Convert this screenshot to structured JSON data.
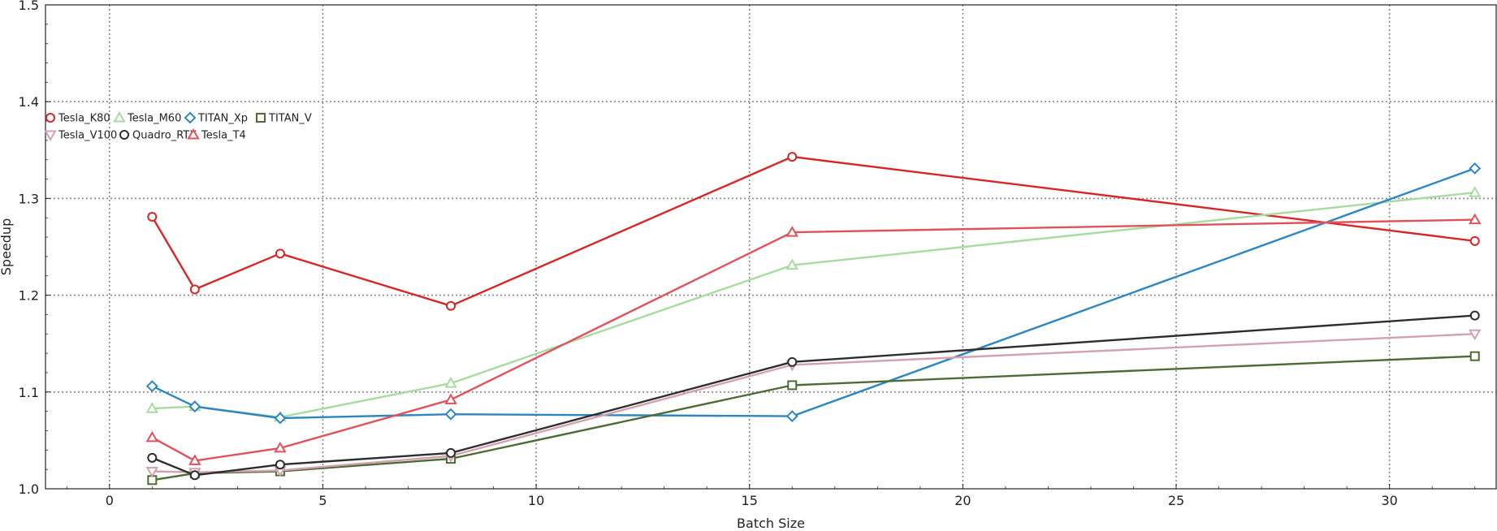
{
  "chart_data": {
    "type": "line",
    "title": "",
    "xlabel": "Batch Size",
    "ylabel": "Speedup",
    "xlim": [
      -1.5,
      32.5
    ],
    "ylim": [
      1.0,
      1.5
    ],
    "xticks": [
      0,
      5,
      10,
      15,
      20,
      25,
      30
    ],
    "yticks": [
      1.0,
      1.1,
      1.2,
      1.3,
      1.4,
      1.5
    ],
    "xtick_labels": [
      "0",
      "5",
      "10",
      "15",
      "20",
      "25",
      "30"
    ],
    "ytick_labels": [
      "1.0",
      "1.1",
      "1.2",
      "1.3",
      "1.4",
      "1.5"
    ],
    "grid": true,
    "legend_position": "upper-left, two rows",
    "x": [
      1,
      2,
      4,
      8,
      16,
      32
    ],
    "series": [
      {
        "name": "Tesla_K80",
        "marker": "circle",
        "color": "#d62728",
        "values": [
          1.281,
          1.206,
          1.243,
          1.189,
          1.343,
          1.256
        ]
      },
      {
        "name": "Tesla_M60",
        "marker": "triangle-up",
        "color": "#a8dba0",
        "values": [
          1.083,
          1.085,
          1.074,
          1.109,
          1.231,
          1.306
        ]
      },
      {
        "name": "TITAN_Xp",
        "marker": "diamond",
        "color": "#2e86c1",
        "values": [
          1.106,
          1.085,
          1.073,
          1.077,
          1.075,
          1.331
        ]
      },
      {
        "name": "TITAN_V",
        "marker": "square",
        "color": "#4e6b35",
        "values": [
          1.009,
          1.016,
          1.018,
          1.031,
          1.107,
          1.137
        ]
      },
      {
        "name": "Tesla_V100",
        "marker": "triangle-down",
        "color": "#d4a1ae",
        "values": [
          1.018,
          1.017,
          1.019,
          1.034,
          1.128,
          1.16
        ]
      },
      {
        "name": "Quadro_RTX",
        "marker": "circle",
        "color": "#2d2d2d",
        "values": [
          1.032,
          1.014,
          1.025,
          1.037,
          1.131,
          1.179
        ]
      },
      {
        "name": "Tesla_T4",
        "marker": "triangle-up",
        "color": "#e0515c",
        "values": [
          1.053,
          1.029,
          1.042,
          1.092,
          1.265,
          1.278
        ]
      }
    ]
  }
}
